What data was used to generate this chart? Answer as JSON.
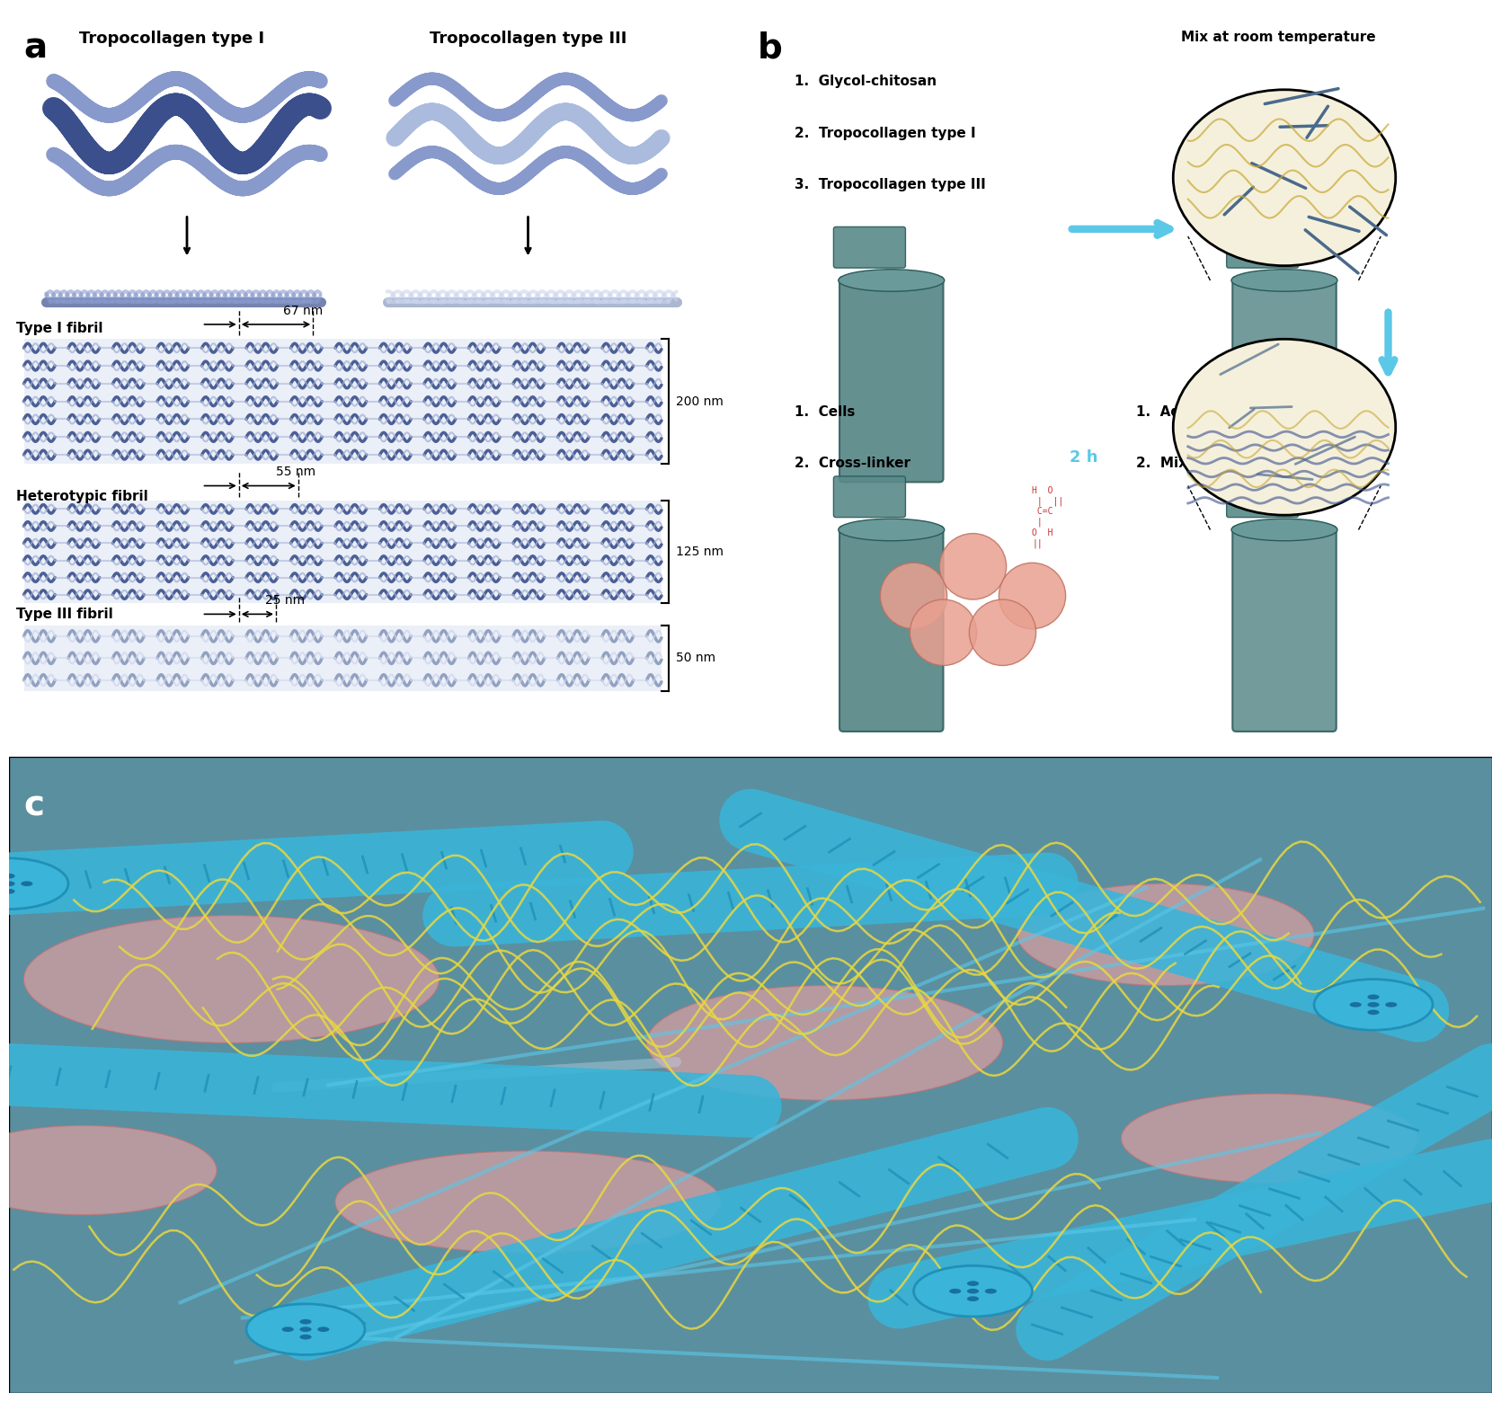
{
  "panel_a_title": "a",
  "panel_b_title": "b",
  "panel_c_title": "c",
  "tropo1_title": "Tropocollagen type I",
  "tropo3_title": "Tropocollagen type III",
  "type1_fibril_label": "Type I fibril",
  "type1_fibril_nm": "67 nm",
  "type1_fibril_size": "200 nm",
  "hetero_fibril_label": "Heterotypic fibril",
  "hetero_fibril_nm": "55 nm",
  "hetero_fibril_size": "125 nm",
  "type3_fibril_label": "Type III fibril",
  "type3_fibril_nm": "25 nm",
  "type3_fibril_size": "50 nm",
  "b_items_left": [
    "1.  Glycol-chitosan",
    "2.  Tropocollagen type I",
    "3.  Tropocollagen type III"
  ],
  "b_items_right_top": "Mix at room temperature",
  "b_items_left2": [
    "1.  Cells",
    "2.  Cross-linker"
  ],
  "b_items_right2": [
    "1.  Adjust pH",
    "2.  Mix at room temperature"
  ],
  "b_time": "2 h",
  "bg_color": "#ffffff",
  "fibril_color_dark": "#3a4f8c",
  "fibril_color_light": "#8899cc",
  "fibril_bg": "#e8ecf5",
  "label_color": "#000000",
  "arrow_color": "#000000",
  "blue_arrow_color": "#5bc8e8",
  "panel_c_bg": "#5a8fa0"
}
